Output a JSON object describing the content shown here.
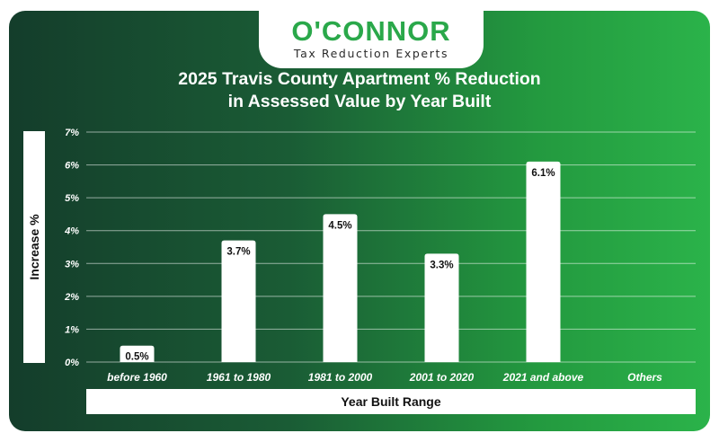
{
  "logo": {
    "name": "O'CONNOR",
    "tagline": "Tax Reduction Experts"
  },
  "colors": {
    "bar": "#ffffff",
    "background_start": "#143d2b",
    "background_end": "#2bb34a",
    "brand": "#2aa84a"
  },
  "chart_data": {
    "type": "bar",
    "title_line1": "2025 Travis County Apartment % Reduction",
    "title_line2": "in Assessed Value by Year Built",
    "xlabel": "Year Built Range",
    "ylabel": "Increase %",
    "categories": [
      "before 1960",
      "1961 to 1980",
      "1981 to 2000",
      "2001 to 2020",
      "2021 and above",
      "Others"
    ],
    "values": [
      0.5,
      3.7,
      4.5,
      3.3,
      6.1,
      null
    ],
    "value_labels": [
      "0.5%",
      "3.7%",
      "4.5%",
      "3.3%",
      "6.1%",
      ""
    ],
    "yticks": [
      0,
      1,
      2,
      3,
      4,
      5,
      6,
      7
    ],
    "ytick_labels": [
      "0%",
      "1%",
      "2%",
      "3%",
      "4%",
      "5%",
      "6%",
      "7%"
    ],
    "ylim": [
      0,
      7
    ],
    "grid": true
  }
}
